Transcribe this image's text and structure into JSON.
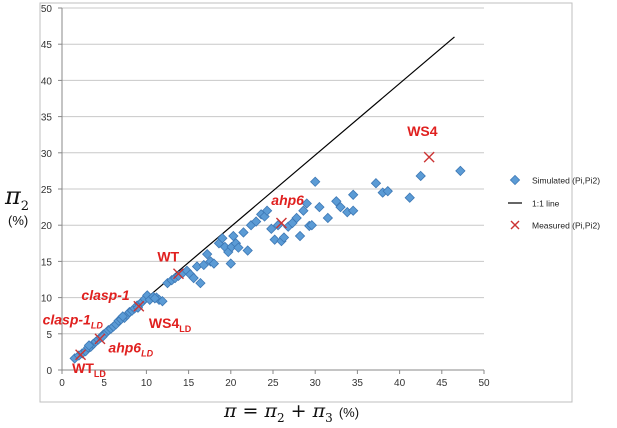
{
  "chart_data": {
    "type": "scatter",
    "xlim": [
      0,
      50
    ],
    "ylim": [
      0,
      50
    ],
    "x_ticks": [
      "0",
      "5",
      "10",
      "15",
      "20",
      "25",
      "30",
      "35",
      "40",
      "45",
      "50"
    ],
    "y_ticks": [
      "0",
      "5",
      "10",
      "15",
      "20",
      "25",
      "30",
      "35",
      "40",
      "45",
      "50"
    ],
    "grid": true,
    "legend_position": "right",
    "y_label": "π₂",
    "y_unit": "(%)",
    "x_label": "π = π₂ + π₃",
    "x_unit": "(%)",
    "colors": {
      "simulated": "#5b9bd5",
      "measured": "#cc3333",
      "line": "#000000",
      "annotation": "#e0201f"
    },
    "series": [
      {
        "name": "Simulated (Pi,Pi2)",
        "marker": "diamond",
        "points": [
          [
            1.5,
            1.6
          ],
          [
            2.0,
            2.0
          ],
          [
            2.4,
            2.3
          ],
          [
            2.8,
            2.6
          ],
          [
            3.1,
            3.1
          ],
          [
            3.4,
            3.2
          ],
          [
            3.7,
            3.6
          ],
          [
            4.0,
            3.9
          ],
          [
            4.3,
            4.2
          ],
          [
            4.6,
            4.5
          ],
          [
            4.9,
            4.9
          ],
          [
            5.2,
            5.1
          ],
          [
            5.5,
            5.5
          ],
          [
            5.8,
            5.7
          ],
          [
            6.1,
            6.0
          ],
          [
            6.4,
            6.3
          ],
          [
            6.7,
            6.8
          ],
          [
            7.0,
            7.0
          ],
          [
            7.4,
            7.2
          ],
          [
            7.7,
            7.6
          ],
          [
            8.0,
            8.0
          ],
          [
            8.3,
            8.2
          ],
          [
            8.6,
            8.5
          ],
          [
            8.9,
            8.9
          ],
          [
            9.2,
            9.1
          ],
          [
            9.5,
            9.4
          ],
          [
            9.8,
            9.8
          ],
          [
            10.1,
            10.3
          ],
          [
            10.4,
            9.7
          ],
          [
            10.8,
            10.1
          ],
          [
            11.2,
            10.0
          ],
          [
            11.5,
            9.7
          ],
          [
            11.9,
            9.5
          ],
          [
            12.5,
            12.0
          ],
          [
            13.0,
            12.4
          ],
          [
            13.4,
            12.7
          ],
          [
            13.8,
            13.0
          ],
          [
            14.3,
            13.4
          ],
          [
            14.8,
            13.7
          ],
          [
            15.2,
            13.2
          ],
          [
            15.6,
            12.7
          ],
          [
            16.0,
            14.3
          ],
          [
            16.4,
            12.0
          ],
          [
            16.8,
            14.5
          ],
          [
            17.2,
            16.0
          ],
          [
            17.6,
            15.0
          ],
          [
            18.0,
            14.7
          ],
          [
            18.6,
            17.5
          ],
          [
            19.0,
            18.2
          ],
          [
            19.3,
            17.0
          ],
          [
            19.7,
            16.3
          ],
          [
            20.0,
            14.7
          ],
          [
            20.1,
            17.0
          ],
          [
            20.3,
            18.5
          ],
          [
            20.6,
            17.5
          ],
          [
            20.9,
            16.9
          ],
          [
            21.5,
            19.0
          ],
          [
            22.0,
            16.5
          ],
          [
            22.4,
            20.0
          ],
          [
            23.0,
            20.5
          ],
          [
            23.6,
            21.5
          ],
          [
            24.0,
            21.2
          ],
          [
            24.3,
            22.0
          ],
          [
            24.8,
            19.5
          ],
          [
            25.2,
            18.0
          ],
          [
            25.6,
            20.0
          ],
          [
            26.0,
            17.8
          ],
          [
            26.3,
            18.3
          ],
          [
            26.8,
            19.8
          ],
          [
            27.3,
            20.3
          ],
          [
            27.8,
            21.0
          ],
          [
            28.2,
            18.5
          ],
          [
            28.6,
            22.0
          ],
          [
            29.0,
            23.0
          ],
          [
            29.3,
            19.9
          ],
          [
            29.6,
            20.0
          ],
          [
            30.0,
            26.0
          ],
          [
            30.5,
            22.5
          ],
          [
            31.5,
            21.0
          ],
          [
            32.5,
            23.3
          ],
          [
            33.0,
            22.5
          ],
          [
            33.8,
            21.8
          ],
          [
            34.5,
            24.2
          ],
          [
            34.5,
            22.0
          ],
          [
            37.2,
            25.8
          ],
          [
            38.0,
            24.5
          ],
          [
            38.6,
            24.7
          ],
          [
            41.2,
            23.8
          ],
          [
            42.5,
            26.8
          ],
          [
            47.2,
            27.5
          ],
          [
            4.8,
            4.6
          ],
          [
            3.2,
            3.4
          ],
          [
            9.0,
            8.6
          ],
          [
            11.0,
            9.9
          ],
          [
            7.2,
            7.4
          ]
        ]
      },
      {
        "name": "1:1 line",
        "marker": "line",
        "points": [
          [
            1.5,
            1.5
          ],
          [
            46.5,
            46.0
          ]
        ]
      },
      {
        "name": "Measured (Pi,Pi2)",
        "marker": "x",
        "points": [
          [
            2.2,
            2.1
          ],
          [
            4.5,
            4.3
          ],
          [
            9.1,
            8.8
          ],
          [
            13.8,
            13.3
          ],
          [
            26.0,
            20.3
          ],
          [
            43.5,
            29.4
          ]
        ]
      }
    ],
    "annotations": [
      {
        "text": "WS4",
        "sub": "",
        "italic": false,
        "x": 40.9,
        "y": 32.3
      },
      {
        "text": "ahp6",
        "sub": "",
        "italic": true,
        "x": 24.8,
        "y": 22.8
      },
      {
        "text": "WT",
        "sub": "",
        "italic": false,
        "x": 11.3,
        "y": 15.0
      },
      {
        "text": "clasp-1",
        "sub": "",
        "italic": true,
        "x": 2.3,
        "y": 9.7
      },
      {
        "text": "WS4",
        "sub": "LD",
        "italic": false,
        "x": 10.3,
        "y": 5.8
      },
      {
        "text": "clasp-1",
        "sub": "LD",
        "italic": true,
        "x": -2.3,
        "y": 6.3
      },
      {
        "text": "ahp6",
        "sub": "LD",
        "italic": true,
        "x": 5.5,
        "y": 2.4
      },
      {
        "text": "WT",
        "sub": "LD",
        "italic": false,
        "x": 1.2,
        "y": -0.4
      }
    ]
  }
}
